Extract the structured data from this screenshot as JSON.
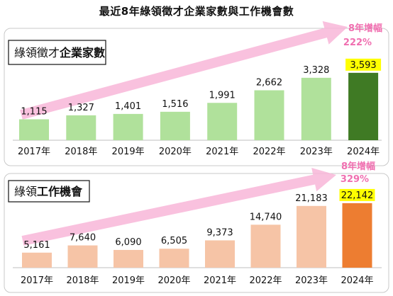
{
  "page_title": "最近8年綠領徵才企業家數與工作機會數",
  "chart_data": [
    {
      "type": "bar",
      "title_plain": "綠領徵才",
      "title_bold": "企業家數",
      "categories": [
        "2017年",
        "2018年",
        "2019年",
        "2020年",
        "2021年",
        "2022年",
        "2023年",
        "2024年"
      ],
      "values": [
        1115,
        1327,
        1401,
        1516,
        1991,
        2662,
        3328,
        3593
      ],
      "value_labels": [
        "1,115",
        "1,327",
        "1,401",
        "1,516",
        "1,991",
        "2,662",
        "3,328",
        "3,593"
      ],
      "bar_color": "#b0e19b",
      "highlight_color": "#3f7a24",
      "highlight_label_bg": "#ffff00",
      "growth_label": "8年增幅",
      "growth_value": "222%",
      "arrow_color": "#f8b6d8",
      "growth_text_color": "#f06fb0",
      "ylim": [
        0,
        3700
      ]
    },
    {
      "type": "bar",
      "title_plain": "綠領",
      "title_bold": "工作機會",
      "categories": [
        "2017年",
        "2018年",
        "2019年",
        "2020年",
        "2021年",
        "2022年",
        "2023年",
        "2024年"
      ],
      "values": [
        5161,
        7640,
        6090,
        6505,
        9373,
        14740,
        21183,
        22142
      ],
      "value_labels": [
        "5,161",
        "7,640",
        "6,090",
        "6,505",
        "9,373",
        "14,740",
        "21,183",
        "22,142"
      ],
      "bar_color": "#f6c4a6",
      "highlight_color": "#ed7d31",
      "highlight_label_bg": "#ffff00",
      "growth_label": "8年增幅",
      "growth_value": "329%",
      "arrow_color": "#f8b6d8",
      "growth_text_color": "#f06fb0",
      "ylim": [
        0,
        22600
      ]
    }
  ]
}
